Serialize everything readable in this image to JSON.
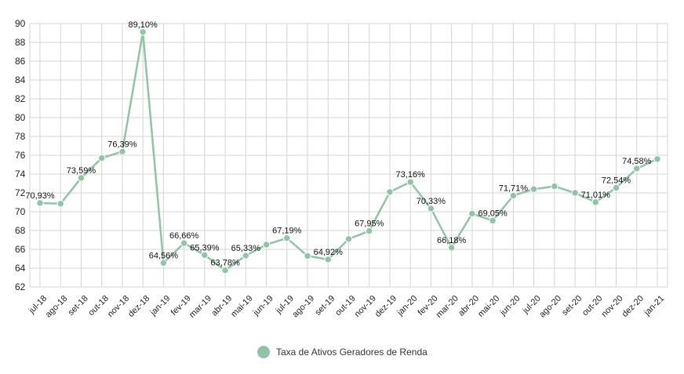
{
  "chart_data": {
    "type": "line",
    "title": "",
    "xlabel": "",
    "ylabel": "",
    "ylim": [
      62,
      90
    ],
    "yticks": [
      62,
      64,
      66,
      68,
      70,
      72,
      74,
      76,
      78,
      80,
      82,
      84,
      86,
      88,
      90
    ],
    "grid": true,
    "legend_position": "bottom",
    "categories": [
      "jul-18",
      "ago-18",
      "set-18",
      "out-18",
      "nov-18",
      "dez-18",
      "jan-19",
      "fev-19",
      "mar-19",
      "abr-19",
      "mai-19",
      "jun-19",
      "jul-19",
      "ago-19",
      "set-19",
      "out-19",
      "nov-19",
      "dez-19",
      "jan-20",
      "fev-20",
      "mar-20",
      "abr-20",
      "mai-20",
      "jun-20",
      "jul-20",
      "ago-20",
      "set-20",
      "out-20",
      "nov-20",
      "dez-20",
      "jan-21"
    ],
    "series": [
      {
        "name": "Taxa de Ativos Geradores de Renda",
        "color": "#8fc5a4",
        "values": [
          70.93,
          70.85,
          73.59,
          75.7,
          76.39,
          89.1,
          64.56,
          66.66,
          65.39,
          63.78,
          65.33,
          66.5,
          67.19,
          65.3,
          64.92,
          67.1,
          67.95,
          72.1,
          73.16,
          70.33,
          66.18,
          69.8,
          69.05,
          71.71,
          72.4,
          72.7,
          72.0,
          71.01,
          72.54,
          74.58,
          75.6
        ],
        "labels": [
          "70,93%",
          "",
          "73,59%",
          "",
          "76,39%",
          "89,10%",
          "64,56%",
          "66,66%",
          "65,39%",
          "63,78%",
          "65,33%",
          "",
          "67,19%",
          "",
          "64,92%",
          "",
          "67,95%",
          "",
          "73,16%",
          "70,33%",
          "66,18%",
          "",
          "69,05%",
          "71,71%",
          "",
          "",
          "",
          "71,01%",
          "72,54%",
          "74,58%",
          ""
        ]
      }
    ]
  }
}
